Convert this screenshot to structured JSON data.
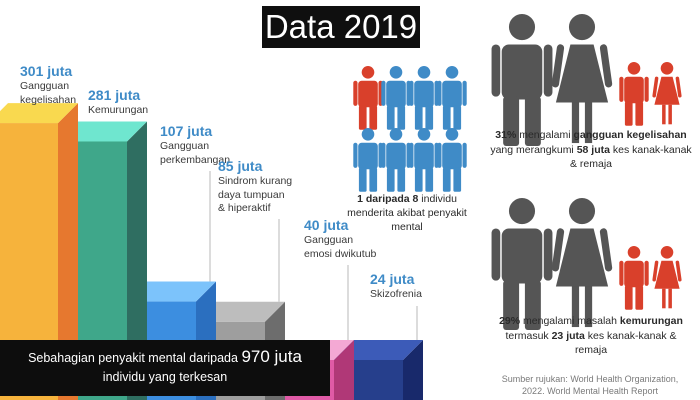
{
  "title": "Data 2019",
  "chart_data": {
    "type": "bar",
    "categories": [
      "Gangguan kegelisahan",
      "Kemurungan",
      "Gangguan perkembangan",
      "Sindrom kurang daya tumpuan & hiperaktif",
      "Gangguan emosi dwikutub",
      "Skizofrenia"
    ],
    "series": [
      {
        "values": [
          301,
          281,
          107,
          85,
          40,
          24
        ]
      }
    ],
    "value_labels": [
      "301 juta",
      "281 juta",
      "107 juta",
      "85 juta",
      "40 juta",
      "24 juta"
    ],
    "category_lines": [
      "Gangguan\nkegelisahan",
      "Kemurungan",
      "Gangguan\nperkembangan",
      "Sindrom kurang\ndaya tumpuan\n& hiperaktif",
      "Gangguan\nemosi dwikutub",
      "Skizofrenia"
    ],
    "unit": "juta",
    "colors": [
      "#f6b33c",
      "#3fa78a",
      "#3c8ee0",
      "#9e9e9e",
      "#e05aa6",
      "#263f8c"
    ],
    "top_colors": [
      "#f9d94f",
      "#6fe6cf",
      "#7cc3fb",
      "#bdbdbd",
      "#f4a9d4",
      "#3c5bb8"
    ],
    "side_colors": [
      "#e6782f",
      "#2f6e61",
      "#2b6fbf",
      "#6d6d6d",
      "#b03877",
      "#18296b"
    ]
  },
  "summary": {
    "line1_prefix": "Sebahagian penyakit mental daripada",
    "line1_number": "970 juta",
    "line2": "individu yang terkesan"
  },
  "ratio": {
    "bold": "1 daripada 8",
    "rest": "individu menderita akibat penyakit mental",
    "icon_colors": [
      "#d9402b",
      "#3f8bc7",
      "#3f8bc7",
      "#3f8bc7",
      "#3f8bc7",
      "#3f8bc7",
      "#3f8bc7",
      "#3f8bc7"
    ]
  },
  "stat1": {
    "percent": "31%",
    "text1": "mengalami",
    "bold1": "gangguan kegelisahan",
    "text2": "yang merangkumi",
    "bold2": "58 juta",
    "text3": "kes kanak-kanak & remaja"
  },
  "stat2": {
    "percent": "29%",
    "text1": "mengalami masalah",
    "bold1": "kemurungan",
    "text2": "termasuk",
    "bold2": "23 juta",
    "text3": "kes kanak-kanak & remaja"
  },
  "people_colors": {
    "adult": "#555555",
    "child": "#d9402b"
  },
  "source": {
    "line1": "Sumber rujukan: World Health Organization,",
    "line2": "2022. World Mental Health Report"
  }
}
